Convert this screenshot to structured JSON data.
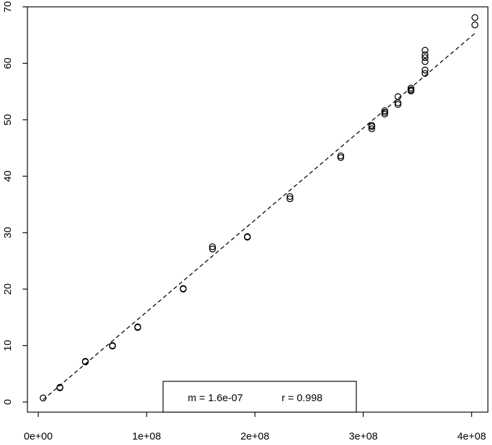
{
  "chart_data": {
    "type": "scatter",
    "title": "",
    "xlabel": "",
    "ylabel": "",
    "xlim": [
      -10000000,
      415000000
    ],
    "ylim": [
      -1.8,
      70
    ],
    "x_ticks": [
      {
        "value": 0,
        "label": "0e+00"
      },
      {
        "value": 100000000,
        "label": "1e+08"
      },
      {
        "value": 200000000,
        "label": "2e+08"
      },
      {
        "value": 300000000,
        "label": "3e+08"
      },
      {
        "value": 400000000,
        "label": "4e+08"
      }
    ],
    "y_ticks": [
      {
        "value": 0,
        "label": "0"
      },
      {
        "value": 10,
        "label": "10"
      },
      {
        "value": 20,
        "label": "20"
      },
      {
        "value": 30,
        "label": "30"
      },
      {
        "value": 40,
        "label": "40"
      },
      {
        "value": 50,
        "label": "50"
      },
      {
        "value": 60,
        "label": "60"
      },
      {
        "value": 70,
        "label": "70"
      }
    ],
    "grid": false,
    "points": [
      {
        "x": 4500000,
        "y": 0.7
      },
      {
        "x": 20000000,
        "y": 2.6
      },
      {
        "x": 20000000,
        "y": 2.5
      },
      {
        "x": 43500000,
        "y": 7.2
      },
      {
        "x": 43500000,
        "y": 7.1
      },
      {
        "x": 68500000,
        "y": 10.0
      },
      {
        "x": 68500000,
        "y": 9.9
      },
      {
        "x": 91800000,
        "y": 13.3
      },
      {
        "x": 91800000,
        "y": 13.2
      },
      {
        "x": 133800000,
        "y": 20.1
      },
      {
        "x": 133800000,
        "y": 20.0
      },
      {
        "x": 160800000,
        "y": 27.5
      },
      {
        "x": 160800000,
        "y": 27.1
      },
      {
        "x": 193000000,
        "y": 29.3
      },
      {
        "x": 193000000,
        "y": 29.2
      },
      {
        "x": 232300000,
        "y": 36.4
      },
      {
        "x": 232300000,
        "y": 36.0
      },
      {
        "x": 279200000,
        "y": 43.6
      },
      {
        "x": 279200000,
        "y": 43.3
      },
      {
        "x": 307800000,
        "y": 49.0
      },
      {
        "x": 307800000,
        "y": 48.8
      },
      {
        "x": 307800000,
        "y": 48.4
      },
      {
        "x": 319800000,
        "y": 51.6
      },
      {
        "x": 319800000,
        "y": 51.3
      },
      {
        "x": 319800000,
        "y": 51.0
      },
      {
        "x": 332000000,
        "y": 54.1
      },
      {
        "x": 332000000,
        "y": 53.0
      },
      {
        "x": 332000000,
        "y": 52.7
      },
      {
        "x": 344000000,
        "y": 55.6
      },
      {
        "x": 344000000,
        "y": 55.3
      },
      {
        "x": 344000000,
        "y": 55.1
      },
      {
        "x": 357000000,
        "y": 62.3
      },
      {
        "x": 357000000,
        "y": 61.5
      },
      {
        "x": 357000000,
        "y": 61.0
      },
      {
        "x": 357000000,
        "y": 60.3
      },
      {
        "x": 357000000,
        "y": 58.8
      },
      {
        "x": 357000000,
        "y": 58.2
      },
      {
        "x": 403000000,
        "y": 68.1
      },
      {
        "x": 403000000,
        "y": 66.8
      }
    ],
    "fit_line": {
      "style": "dashed",
      "x": [
        4500000,
        403000000
      ],
      "y": [
        0.4,
        65.3
      ]
    },
    "annotation": {
      "m_text": "m = 1.6e-07",
      "r_text": "r = 0.998",
      "placement": "bottom-center"
    }
  }
}
